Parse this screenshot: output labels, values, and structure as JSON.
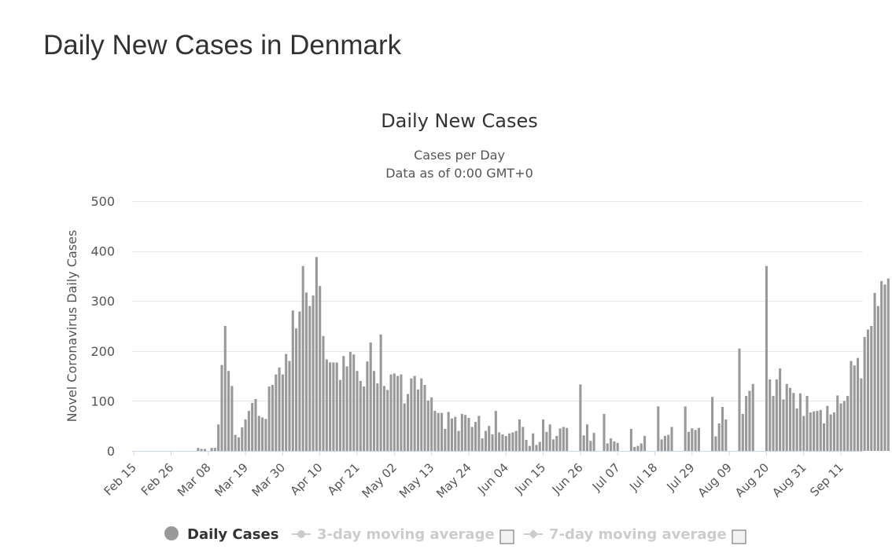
{
  "page": {
    "title": "Daily New Cases in Denmark"
  },
  "chart_data": {
    "type": "bar",
    "title": "Daily New Cases",
    "subtitle_lines": [
      "Cases per Day",
      "Data as of 0:00 GMT+0"
    ],
    "ylabel": "Novel Coronavirus Daily Cases",
    "xlabel": "",
    "ylim": [
      0,
      500
    ],
    "yticks": [
      0,
      100,
      200,
      300,
      400,
      500
    ],
    "grid": true,
    "legend_position": "bottom",
    "x_tick_labels": [
      "Feb 15",
      "Feb 26",
      "Mar 08",
      "Mar 19",
      "Mar 30",
      "Apr 10",
      "Apr 21",
      "May 02",
      "May 13",
      "May 24",
      "Jun 04",
      "Jun 15",
      "Jun 26",
      "Jul 07",
      "Jul 18",
      "Jul 29",
      "Aug 09",
      "Aug 20",
      "Aug 31",
      "Sep 11"
    ],
    "x_tick_start": "2020-02-15",
    "x_tick_every_days": 11,
    "x_start": "2020-02-15",
    "x_end": "2020-09-17",
    "series": [
      {
        "name": "Daily Cases",
        "color": "#999999",
        "values": [
          0,
          0,
          0,
          0,
          0,
          0,
          0,
          0,
          0,
          0,
          0,
          0,
          0,
          0,
          0,
          0,
          0,
          0,
          0,
          6,
          4,
          4,
          0,
          6,
          6,
          53,
          172,
          250,
          160,
          130,
          32,
          27,
          47,
          63,
          80,
          96,
          104,
          70,
          67,
          64,
          129,
          132,
          153,
          167,
          153,
          194,
          180,
          281,
          245,
          279,
          370,
          317,
          290,
          311,
          388,
          330,
          230,
          183,
          177,
          177,
          177,
          142,
          190,
          169,
          198,
          193,
          160,
          140,
          129,
          179,
          217,
          160,
          135,
          233,
          130,
          122,
          153,
          155,
          150,
          153,
          95,
          114,
          145,
          150,
          123,
          145,
          132,
          101,
          107,
          80,
          76,
          76,
          44,
          78,
          65,
          68,
          40,
          74,
          72,
          66,
          48,
          58,
          70,
          25,
          40,
          50,
          33,
          80,
          37,
          33,
          30,
          35,
          37,
          40,
          63,
          48,
          22,
          10,
          35,
          12,
          18,
          63,
          38,
          53,
          23,
          30,
          45,
          48,
          46,
          0,
          0,
          0,
          133,
          31,
          53,
          20,
          36,
          0,
          0,
          74,
          15,
          25,
          19,
          16,
          0,
          0,
          0,
          44,
          8,
          10,
          15,
          30,
          0,
          0,
          0,
          89,
          23,
          30,
          32,
          48,
          0,
          0,
          0,
          89,
          38,
          45,
          42,
          46,
          0,
          0,
          0,
          108,
          29,
          55,
          88,
          63,
          0,
          0,
          0,
          205,
          74,
          110,
          120,
          134,
          0,
          0,
          0,
          370,
          143,
          110,
          143,
          165,
          103,
          134,
          126,
          116,
          85,
          115,
          70,
          110,
          77,
          79,
          80,
          82,
          55,
          90,
          73,
          77,
          111,
          95,
          100,
          110,
          180,
          171,
          186,
          145,
          228,
          243,
          250,
          316,
          290,
          340,
          333,
          345
        ]
      },
      {
        "name": "3-day moving average",
        "color": "#cccccc",
        "visible": false
      },
      {
        "name": "7-day moving average",
        "color": "#cccccc",
        "visible": false
      }
    ]
  }
}
